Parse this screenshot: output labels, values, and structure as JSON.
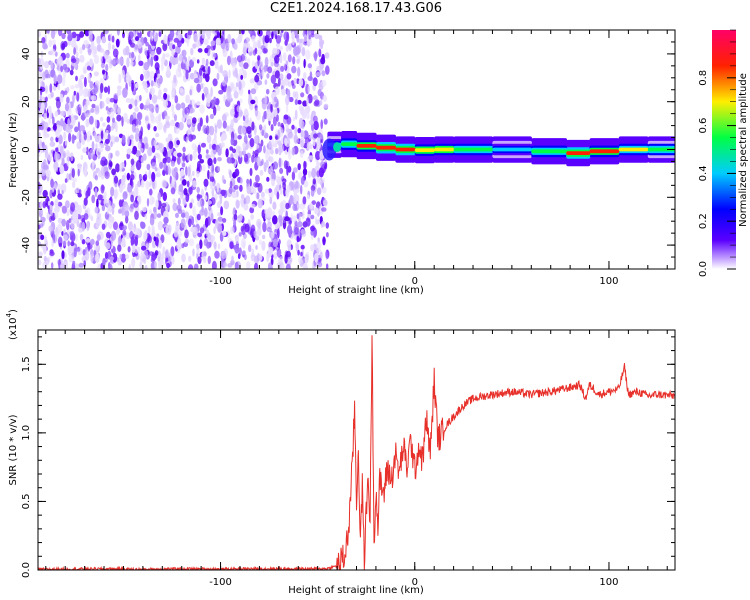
{
  "page_title": "C2E1.2024.168.17.43.G06",
  "chart_data": [
    {
      "type": "heatmap",
      "xlabel": "Height of straight line (km)",
      "ylabel": "Frequency (Hz)",
      "xlim": [
        -194,
        134
      ],
      "ylim": [
        -50,
        50
      ],
      "x_ticks": [
        -100,
        0,
        100
      ],
      "x_tick_labels": [
        "-100",
        "0",
        "100"
      ],
      "y_ticks": [
        -40,
        -20,
        0,
        20,
        40
      ],
      "y_tick_labels": [
        "-40",
        "-20",
        "0",
        "20",
        "40"
      ],
      "colorbar": {
        "label": "Normalized spectral amplitude",
        "range": [
          0,
          1
        ],
        "ticks": [
          0.0,
          0.2,
          0.4,
          0.6,
          0.8
        ],
        "tick_labels": [
          "0.0",
          "0.2",
          "0.4",
          "0.6",
          "0.8"
        ],
        "colormap": [
          "#ffffff",
          "#5a00ff",
          "#0000ff",
          "#00ccff",
          "#00ff44",
          "#ffee00",
          "#ff2200",
          "#ff0066"
        ]
      },
      "noise_region_x": [
        -194,
        -48
      ],
      "signal_ridge": {
        "frequency_hz": 0,
        "x_range": [
          -48,
          134
        ],
        "points": [
          {
            "x": -45,
            "f": 1.5,
            "amp": 0.35
          },
          {
            "x": -38,
            "f": 2.5,
            "amp": 0.6
          },
          {
            "x": -30,
            "f": 2.0,
            "amp": 0.85
          },
          {
            "x": -20,
            "f": 1.0,
            "amp": 0.95
          },
          {
            "x": -10,
            "f": 0.5,
            "amp": 0.95
          },
          {
            "x": 0,
            "f": -0.5,
            "amp": 0.9
          },
          {
            "x": 10,
            "f": 0.0,
            "amp": 0.85
          },
          {
            "x": 20,
            "f": 0.0,
            "amp": 0.8
          },
          {
            "x": 40,
            "f": 0.0,
            "amp": 0.6
          },
          {
            "x": 60,
            "f": 0.0,
            "amp": 0.55
          },
          {
            "x": 78,
            "f": -1.5,
            "amp": 0.9
          },
          {
            "x": 90,
            "f": -1.5,
            "amp": 0.95
          },
          {
            "x": 105,
            "f": 0.0,
            "amp": 0.85
          },
          {
            "x": 120,
            "f": 0.0,
            "amp": 0.7
          },
          {
            "x": 134,
            "f": 0.0,
            "amp": 0.6
          }
        ]
      }
    },
    {
      "type": "line",
      "xlabel": "Height of straight line (km)",
      "ylabel": "SNR (10 * v/v)",
      "y_multiplier_label": "(x10",
      "y_multiplier_exponent": "4",
      "xlim": [
        -194,
        134
      ],
      "ylim": [
        0,
        1.75
      ],
      "x_ticks": [
        -100,
        0,
        100
      ],
      "x_tick_labels": [
        "-100",
        "0",
        "100"
      ],
      "y_ticks": [
        0.0,
        0.5,
        1.0,
        1.5
      ],
      "y_tick_labels": [
        "0.0",
        "0.5",
        "1.0",
        "1.5"
      ],
      "color": "#e8302a",
      "series": [
        {
          "x": [
            -194,
            -180,
            -160,
            -140,
            -120,
            -100,
            -80,
            -60,
            -45,
            -40,
            -36,
            -34,
            -32,
            -31,
            -30,
            -29,
            -28,
            -27,
            -26,
            -25,
            -24,
            -23,
            -22,
            -21,
            -20,
            -19,
            -18,
            -16,
            -14,
            -12,
            -10,
            -8,
            -6,
            -4,
            -2,
            0,
            2,
            4,
            6,
            8,
            10,
            12,
            14,
            16,
            20,
            25,
            30,
            40,
            50,
            60,
            70,
            80,
            85,
            88,
            90,
            95,
            100,
            105,
            108,
            110,
            115,
            120,
            125,
            134
          ],
          "y": [
            0.005,
            0.007,
            0.008,
            0.005,
            0.009,
            0.006,
            0.01,
            0.008,
            0.01,
            0.03,
            0.1,
            0.3,
            0.8,
            1.2,
            0.5,
            0.9,
            0.2,
            0.6,
            0.1,
            0.4,
            0.7,
            0.35,
            1.75,
            0.2,
            0.6,
            0.3,
            0.65,
            0.55,
            0.75,
            0.65,
            0.85,
            0.7,
            0.9,
            0.75,
            0.95,
            0.72,
            0.9,
            0.8,
            1.1,
            0.85,
            1.38,
            0.95,
            1.0,
            1.05,
            1.12,
            1.2,
            1.25,
            1.28,
            1.3,
            1.28,
            1.3,
            1.33,
            1.35,
            1.25,
            1.35,
            1.28,
            1.3,
            1.32,
            1.48,
            1.28,
            1.3,
            1.27,
            1.28,
            1.27
          ]
        }
      ]
    }
  ]
}
